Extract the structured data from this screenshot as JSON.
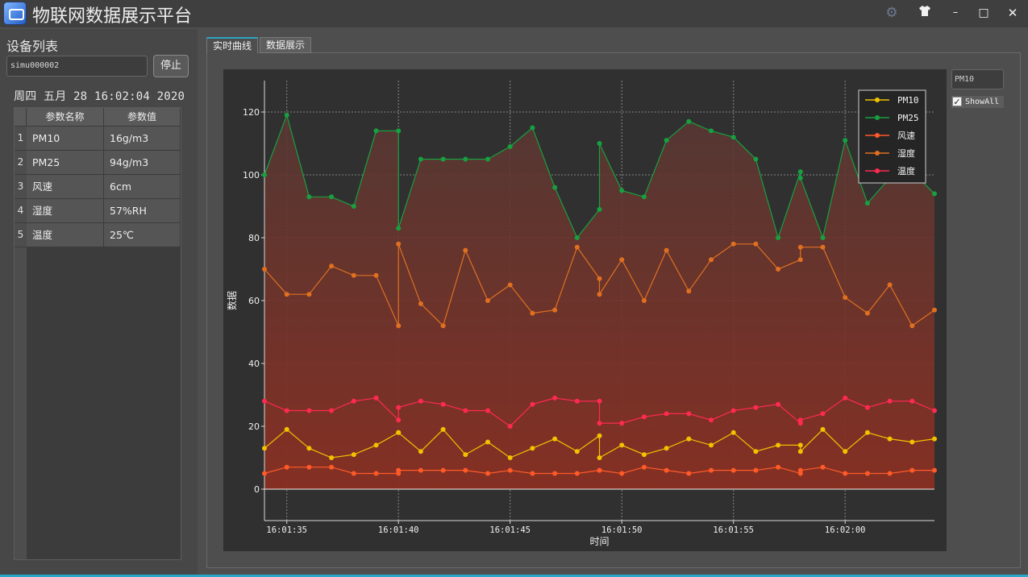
{
  "app": {
    "title": "物联网数据展示平台"
  },
  "window_controls": {
    "settings_icon": "gear-icon",
    "skin_icon": "tshirt-icon",
    "minimize": "–",
    "maximize": "□",
    "close": "✕"
  },
  "left": {
    "device_list_title": "设备列表",
    "device_input_value": "simu000002",
    "stop_label": "停止",
    "datetime": "周四 五月 28 16:02:04 2020",
    "table": {
      "headers": [
        "参数名称",
        "参数值"
      ],
      "rows": [
        {
          "idx": "1",
          "name": "PM10",
          "value": "16g/m3"
        },
        {
          "idx": "2",
          "name": "PM25",
          "value": "94g/m3"
        },
        {
          "idx": "3",
          "name": "风速",
          "value": "6cm"
        },
        {
          "idx": "4",
          "name": "湿度",
          "value": "57%RH"
        },
        {
          "idx": "5",
          "name": "温度",
          "value": "25℃"
        }
      ]
    }
  },
  "tabs": [
    {
      "label": "实时曲线",
      "active": true
    },
    {
      "label": "数据展示",
      "active": false
    }
  ],
  "controls": {
    "series_input_value": "PM10",
    "showall_label": "ShowAll",
    "showall_checked": true
  },
  "chart_data": {
    "type": "area",
    "xlabel": "时间",
    "ylabel": "数据",
    "ylim": [
      -10,
      130
    ],
    "y_ticks": [
      0,
      20,
      40,
      60,
      80,
      100,
      120
    ],
    "x_tick_labels": [
      "16:01:35",
      "16:01:40",
      "16:01:45",
      "16:01:50",
      "16:01:55",
      "16:02:00"
    ],
    "xlim_seconds": [
      "16:01:34",
      "16:02:04"
    ],
    "grid": true,
    "legend_position": "top-right",
    "x": [
      "16:01:34",
      "16:01:35",
      "16:01:36",
      "16:01:37",
      "16:01:38",
      "16:01:39",
      "16:01:40",
      "16:01:40",
      "16:01:41",
      "16:01:42",
      "16:01:43",
      "16:01:44",
      "16:01:45",
      "16:01:46",
      "16:01:47",
      "16:01:48",
      "16:01:49",
      "16:01:49",
      "16:01:50",
      "16:01:51",
      "16:01:52",
      "16:01:53",
      "16:01:54",
      "16:01:55",
      "16:01:56",
      "16:01:57",
      "16:01:58",
      "16:01:58",
      "16:01:59",
      "16:02:00",
      "16:02:01",
      "16:02:02",
      "16:02:03",
      "16:02:04"
    ],
    "series": [
      {
        "name": "PM10",
        "color": "#f2c200",
        "values": [
          13,
          19,
          13,
          10,
          11,
          14,
          18,
          18,
          12,
          19,
          11,
          15,
          10,
          13,
          16,
          12,
          17,
          10,
          14,
          11,
          13,
          16,
          14,
          18,
          12,
          14,
          14,
          12,
          19,
          12,
          18,
          16,
          15,
          16
        ]
      },
      {
        "name": "PM25",
        "color": "#17a040",
        "values": [
          100,
          119,
          93,
          93,
          90,
          114,
          114,
          83,
          105,
          105,
          105,
          105,
          109,
          115,
          96,
          80,
          89,
          110,
          95,
          93,
          111,
          117,
          114,
          112,
          105,
          80,
          101,
          99,
          80,
          111,
          91,
          99,
          101,
          94
        ]
      },
      {
        "name": "风速",
        "color": "#ff5a28",
        "values": [
          5,
          7,
          7,
          7,
          5,
          5,
          5,
          6,
          6,
          6,
          6,
          5,
          6,
          5,
          5,
          5,
          6,
          6,
          5,
          7,
          6,
          5,
          6,
          6,
          6,
          7,
          5,
          6,
          7,
          5,
          5,
          5,
          6,
          6
        ]
      },
      {
        "name": "湿度",
        "color": "#e07020",
        "values": [
          70,
          62,
          62,
          71,
          68,
          68,
          52,
          78,
          59,
          52,
          76,
          60,
          65,
          56,
          57,
          77,
          67,
          62,
          73,
          60,
          76,
          63,
          73,
          78,
          78,
          70,
          73,
          77,
          77,
          61,
          56,
          65,
          52,
          57
        ]
      },
      {
        "name": "温度",
        "color": "#ff2a50",
        "values": [
          28,
          25,
          25,
          25,
          28,
          29,
          22,
          26,
          28,
          27,
          25,
          25,
          20,
          27,
          29,
          28,
          28,
          21,
          21,
          23,
          24,
          24,
          22,
          25,
          26,
          27,
          21,
          22,
          24,
          29,
          26,
          28,
          28,
          25
        ]
      }
    ]
  }
}
